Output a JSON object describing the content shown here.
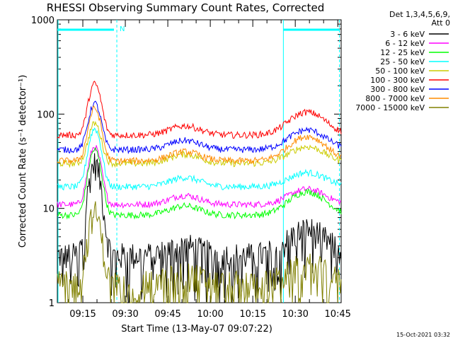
{
  "chart_data": {
    "type": "line",
    "title": "RHESSI Observing Summary Count Rates, Corrected",
    "xlabel": "Start Time (13-May-07 09:07:22)",
    "ylabel": "Corrected Count Rate (s⁻¹ detector⁻¹)",
    "yscale": "log",
    "ylim": [
      1,
      1000
    ],
    "xlim_minutes": [
      9.1,
      10.77
    ],
    "xlim_labels": [
      "09:07:22",
      "10:46:00"
    ],
    "x_ticks": [
      "09:15",
      "09:30",
      "09:45",
      "10:00",
      "10:15",
      "10:30",
      "10:45"
    ],
    "x_tick_minutes": [
      15,
      30,
      45,
      60,
      75,
      90,
      105
    ],
    "y_ticks": [
      "1",
      "10",
      "100",
      "1000"
    ],
    "y_tick_values": [
      1,
      10,
      100,
      1000
    ],
    "legend_header": [
      "Det 1,3,4,5,6,9,",
      "Att 0"
    ],
    "legend_placement": "right",
    "timestamp": "15-Oct-2021 03:32",
    "night_marker": "N",
    "series": [
      {
        "name": "3 - 6 keV",
        "color": "#000000",
        "base": 3.2,
        "peak": 30,
        "late": 6.0
      },
      {
        "name": "6 - 12 keV",
        "color": "#ff00ff",
        "base": 11,
        "peak": 45,
        "late": 16
      },
      {
        "name": "12 - 25 keV",
        "color": "#00ff00",
        "base": 8.5,
        "peak": 42,
        "late": 15
      },
      {
        "name": "25 - 50 keV",
        "color": "#00ffff",
        "base": 17,
        "peak": 70,
        "late": 24
      },
      {
        "name": "50 - 100 keV",
        "color": "#cccc00",
        "base": 30,
        "peak": 80,
        "late": 45
      },
      {
        "name": "100 - 300 keV",
        "color": "#ff0000",
        "base": 60,
        "peak": 210,
        "late": 105
      },
      {
        "name": "300 - 800 keV",
        "color": "#0000ff",
        "base": 42,
        "peak": 130,
        "late": 68
      },
      {
        "name": "800 - 7000 keV",
        "color": "#ff8c00",
        "base": 32,
        "peak": 115,
        "late": 58
      },
      {
        "name": "7000 - 15000 keV",
        "color": "#808000",
        "base": 1.6,
        "peak": 9,
        "late": 2.5
      }
    ]
  }
}
